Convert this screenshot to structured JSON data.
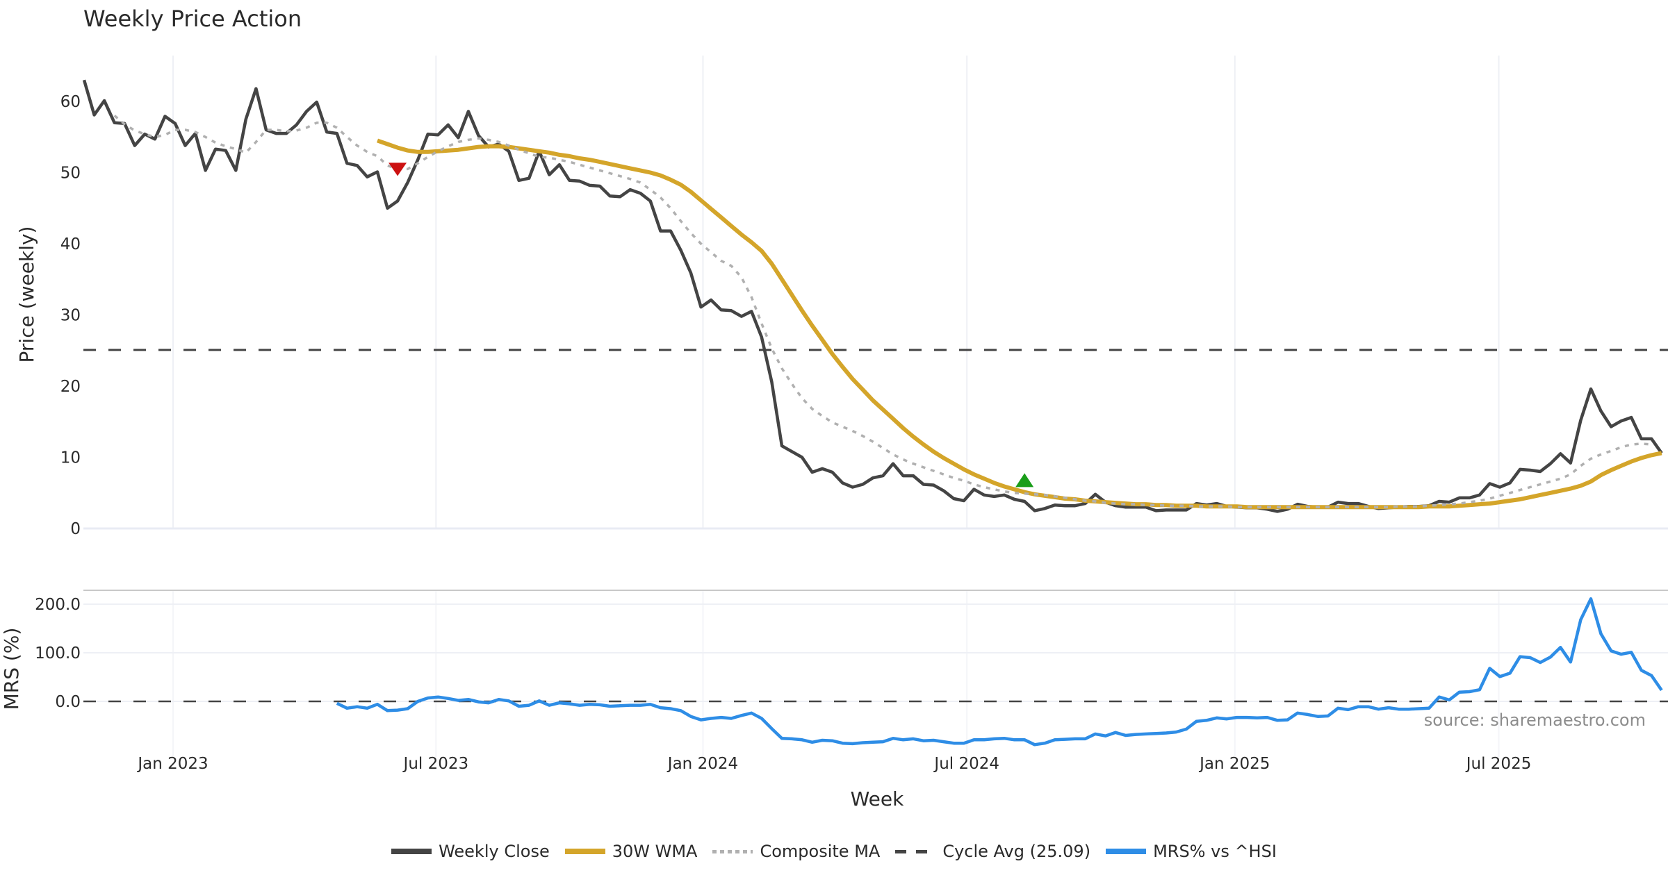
{
  "chart_data": {
    "type": "line",
    "title": "Weekly Price Action",
    "xlabel": "Week",
    "source_note": "source: sharemaestro.com",
    "x_start_week": "2022-10-31",
    "x_step": "1 week",
    "x_ticks": [
      "Jan 2023",
      "Jul 2023",
      "Jan 2024",
      "Jul 2024",
      "Jan 2025",
      "Jul 2025"
    ],
    "panels": [
      {
        "id": "price",
        "ylabel": "Price (weekly)",
        "ylim": [
          0,
          65
        ],
        "y_ticks": [
          "0",
          "10",
          "20",
          "30",
          "40",
          "50",
          "60"
        ],
        "grid": true
      },
      {
        "id": "mrs",
        "ylabel": "MRS (%)",
        "ylim": [
          -100,
          220
        ],
        "y_ticks": [
          "0.0",
          "100.0",
          "200.0"
        ],
        "grid": true
      }
    ],
    "series": [
      {
        "name": "Weekly Close",
        "panel": "price",
        "color": "#444444",
        "style": "solid",
        "start_index": 0,
        "values": [
          63.0,
          58.1,
          60.1,
          57.0,
          56.9,
          53.8,
          55.4,
          54.7,
          57.9,
          56.9,
          53.8,
          55.5,
          50.3,
          53.3,
          53.1,
          50.3,
          57.5,
          61.8,
          56.0,
          55.5,
          55.5,
          56.7,
          58.6,
          59.9,
          55.7,
          55.5,
          51.3,
          51.0,
          49.4,
          50.1,
          45.0,
          46.0,
          48.6,
          51.8,
          55.4,
          55.3,
          56.7,
          54.9,
          58.6,
          55.2,
          53.6,
          54.0,
          53.0,
          48.9,
          49.2,
          53.0,
          49.7,
          51.1,
          48.9,
          48.8,
          48.2,
          48.1,
          46.7,
          46.6,
          47.6,
          47.1,
          46.0,
          41.8,
          41.8,
          39.1,
          35.9,
          31.1,
          32.1,
          30.7,
          30.6,
          29.8,
          30.5,
          26.9,
          20.6,
          11.6,
          10.8,
          10.0,
          7.9,
          8.4,
          7.9,
          6.4,
          5.8,
          6.2,
          7.1,
          7.4,
          9.1,
          7.4,
          7.4,
          6.2,
          6.1,
          5.3,
          4.2,
          3.9,
          5.5,
          4.7,
          4.5,
          4.7,
          4.1,
          3.8,
          2.5,
          2.8,
          3.3,
          3.2,
          3.2,
          3.5,
          4.8,
          3.7,
          3.2,
          3.0,
          3.0,
          3.0,
          2.5,
          2.6,
          2.6,
          2.6,
          3.5,
          3.3,
          3.5,
          3.1,
          3.0,
          2.9,
          2.9,
          2.7,
          2.4,
          2.7,
          3.4,
          3.1,
          3.0,
          3.0,
          3.7,
          3.5,
          3.5,
          3.1,
          2.8,
          2.9,
          3.0,
          3.1,
          3.1,
          3.2,
          3.8,
          3.7,
          4.3,
          4.3,
          4.7,
          6.3,
          5.8,
          6.4,
          8.3,
          8.2,
          8.0,
          9.1,
          10.5,
          9.2,
          15.2,
          19.6,
          16.5,
          14.3,
          15.1,
          15.6,
          12.6,
          12.6,
          10.6
        ]
      },
      {
        "name": "30W WMA",
        "panel": "price",
        "color": "#d4a52a",
        "style": "solid",
        "start_index": 29,
        "values": [
          54.5,
          54.0,
          53.5,
          53.1,
          52.9,
          52.9,
          53.0,
          53.1,
          53.2,
          53.4,
          53.6,
          53.7,
          53.7,
          53.6,
          53.4,
          53.2,
          53.0,
          52.8,
          52.5,
          52.3,
          52.0,
          51.8,
          51.5,
          51.2,
          50.9,
          50.6,
          50.3,
          50.0,
          49.6,
          49.0,
          48.3,
          47.3,
          46.1,
          44.9,
          43.7,
          42.5,
          41.3,
          40.2,
          39.0,
          37.2,
          35.0,
          32.8,
          30.6,
          28.5,
          26.5,
          24.5,
          22.7,
          21.0,
          19.5,
          18.0,
          16.7,
          15.4,
          14.1,
          12.9,
          11.8,
          10.8,
          9.9,
          9.1,
          8.3,
          7.6,
          7.0,
          6.4,
          5.9,
          5.5,
          5.1,
          4.8,
          4.6,
          4.4,
          4.2,
          4.1,
          3.9,
          3.8,
          3.7,
          3.6,
          3.5,
          3.4,
          3.4,
          3.3,
          3.3,
          3.2,
          3.2,
          3.2,
          3.1,
          3.1,
          3.1,
          3.1,
          3.0,
          3.0,
          3.0,
          3.0,
          3.0,
          3.0,
          3.0,
          3.0,
          3.0,
          3.0,
          3.0,
          3.0,
          3.0,
          3.0,
          3.0,
          3.0,
          3.0,
          3.0,
          3.1,
          3.1,
          3.1,
          3.2,
          3.3,
          3.4,
          3.5,
          3.7,
          3.9,
          4.1,
          4.4,
          4.7,
          5.0,
          5.3,
          5.6,
          6.0,
          6.6,
          7.5,
          8.2,
          8.8,
          9.4,
          9.9,
          10.3,
          10.6
        ]
      },
      {
        "name": "Composite MA",
        "panel": "price",
        "color": "#b0b0b0",
        "style": "dotted",
        "start_index": 3,
        "values": [
          58.0,
          56.8,
          55.9,
          55.4,
          55.0,
          55.3,
          56.0,
          56.0,
          55.7,
          55.0,
          54.2,
          53.7,
          53.3,
          52.8,
          54.3,
          56.0,
          56.0,
          55.8,
          55.9,
          56.3,
          57.0,
          57.0,
          56.3,
          55.0,
          53.8,
          52.9,
          52.3,
          51.0,
          50.5,
          50.5,
          51.3,
          52.2,
          53.0,
          53.7,
          54.3,
          54.6,
          54.8,
          54.6,
          54.3,
          53.8,
          53.2,
          52.7,
          52.2,
          52.1,
          51.8,
          51.5,
          51.1,
          50.7,
          50.3,
          49.9,
          49.5,
          49.1,
          48.6,
          47.6,
          46.5,
          45.0,
          43.2,
          41.5,
          40.0,
          38.8,
          37.6,
          36.9,
          35.3,
          32.5,
          28.8,
          25.3,
          22.5,
          20.3,
          18.3,
          16.8,
          15.8,
          14.9,
          14.3,
          13.7,
          13.0,
          12.2,
          11.3,
          10.4,
          9.7,
          9.1,
          8.6,
          8.1,
          7.6,
          7.1,
          6.7,
          6.2,
          5.8,
          5.5,
          5.2,
          5.0,
          4.9,
          4.8,
          4.7,
          4.5,
          4.3,
          4.1,
          3.9,
          3.8,
          3.6,
          3.5,
          3.4,
          3.4,
          3.3,
          3.3,
          3.2,
          3.2,
          3.2,
          3.1,
          3.1,
          3.1,
          3.1,
          3.0,
          3.0,
          3.0,
          3.0,
          3.0,
          3.0,
          3.0,
          3.0,
          3.0,
          3.0,
          3.0,
          3.0,
          3.0,
          3.0,
          3.0,
          3.0,
          3.1,
          3.1,
          3.1,
          3.2,
          3.3,
          3.4,
          3.5,
          3.7,
          3.9,
          4.2,
          4.6,
          5.0,
          5.4,
          5.8,
          6.2,
          6.6,
          7.0,
          7.6,
          8.8,
          9.8,
          10.4,
          10.9,
          11.4,
          11.8,
          11.9,
          11.8
        ]
      },
      {
        "name": "Cycle Avg (25.09)",
        "panel": "price",
        "color": "#444444",
        "style": "dashed",
        "value": 25.09
      },
      {
        "name": "MRS% vs ^HSI",
        "panel": "mrs",
        "color": "#2e8de6",
        "style": "solid",
        "start_index": 25,
        "values": [
          -4,
          -14,
          -11,
          -14,
          -6,
          -19,
          -18,
          -15,
          0,
          7,
          9,
          6,
          2,
          4,
          -1,
          -3,
          4,
          1,
          -10,
          -8,
          1,
          -8,
          -3,
          -5,
          -8,
          -6,
          -7,
          -10,
          -9,
          -8,
          -8,
          -6,
          -13,
          -15,
          -19,
          -31,
          -38,
          -35,
          -33,
          -35,
          -29,
          -24,
          -35,
          -56,
          -76,
          -77,
          -79,
          -84,
          -80,
          -81,
          -86,
          -87,
          -85,
          -84,
          -83,
          -76,
          -79,
          -77,
          -81,
          -80,
          -83,
          -86,
          -86,
          -79,
          -79,
          -77,
          -76,
          -79,
          -79,
          -89,
          -86,
          -79,
          -78,
          -77,
          -77,
          -67,
          -71,
          -64,
          -70,
          -68,
          -67,
          -66,
          -65,
          -63,
          -57,
          -41,
          -39,
          -34,
          -36,
          -33,
          -33,
          -34,
          -33,
          -39,
          -38,
          -24,
          -27,
          -31,
          -30,
          -14,
          -17,
          -11,
          -11,
          -16,
          -13,
          -16,
          -16,
          -15,
          -14,
          9,
          3,
          19,
          20,
          24,
          68,
          51,
          58,
          92,
          90,
          80,
          91,
          111,
          81,
          168,
          211,
          139,
          104,
          97,
          101,
          64,
          53,
          23
        ]
      }
    ],
    "markers": [
      {
        "type": "sell",
        "shape": "triangle-down",
        "color": "#cc1111",
        "index": 31,
        "value": 50.5,
        "panel": "price"
      },
      {
        "type": "buy",
        "shape": "triangle-up",
        "color": "#1a9e1a",
        "index": 93,
        "value": 6.7,
        "panel": "price"
      }
    ],
    "legend": {
      "placement": "bottom-center",
      "entries": [
        {
          "label": "Weekly Close",
          "color": "#444444",
          "style": "solid"
        },
        {
          "label": "30W WMA",
          "color": "#d4a52a",
          "style": "solid"
        },
        {
          "label": "Composite MA",
          "color": "#b0b0b0",
          "style": "dotted"
        },
        {
          "label": "Cycle Avg (25.09)",
          "color": "#444444",
          "style": "dashed"
        },
        {
          "label": "MRS% vs ^HSI",
          "color": "#2e8de6",
          "style": "solid"
        }
      ]
    }
  }
}
